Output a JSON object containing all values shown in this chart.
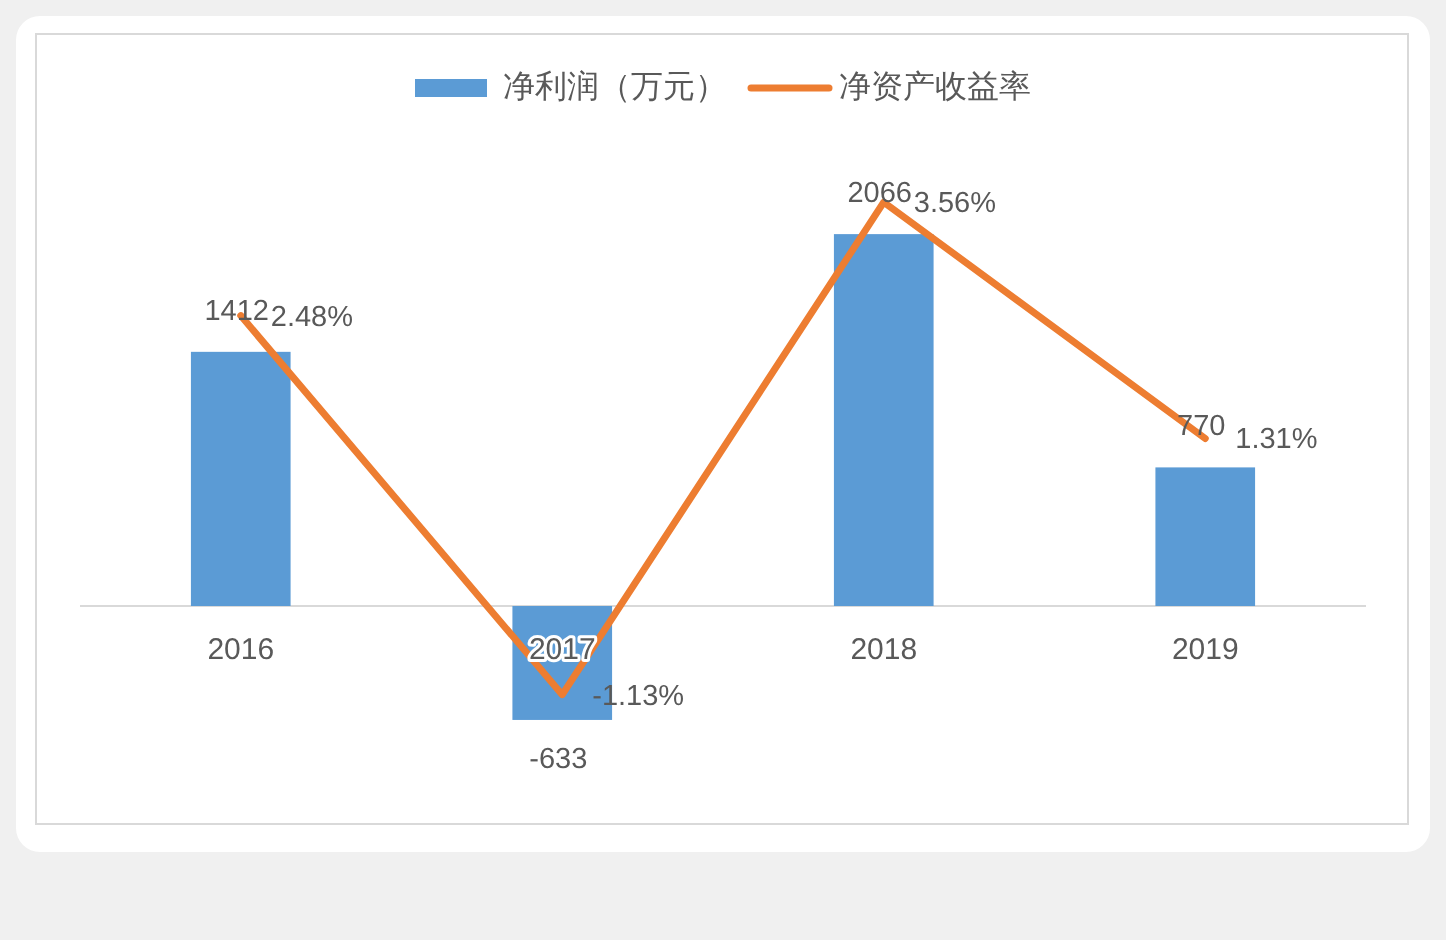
{
  "chart_data": {
    "type": "bar",
    "categories": [
      "2016",
      "2017",
      "2018",
      "2019"
    ],
    "series": [
      {
        "name": "净利润（万元）",
        "color": "#5b9bd5",
        "values": [
          1412,
          -633,
          2066,
          770
        ]
      },
      {
        "name": "净资产收益率",
        "type": "line",
        "axis": "y2",
        "color": "#ed7d31",
        "values": [
          2.48,
          -1.13,
          3.56,
          1.31
        ],
        "value_labels": [
          "2.48%",
          "-1.13%",
          "3.56%",
          "1.31%"
        ]
      }
    ],
    "data_labels": true,
    "legend": "top"
  }
}
